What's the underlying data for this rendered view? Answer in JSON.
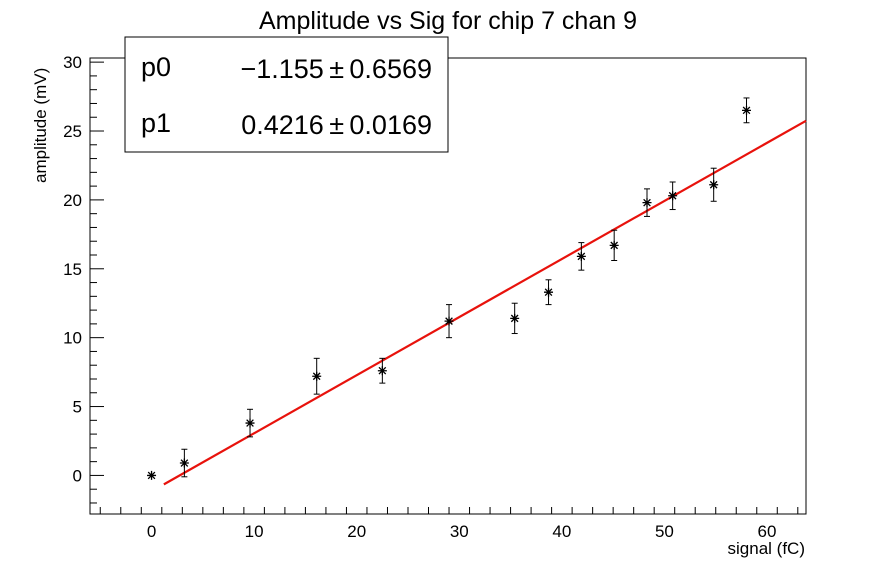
{
  "chart_data": {
    "type": "scatter",
    "title": "Amplitude vs Sig for chip 7 chan 9",
    "xlabel": "signal (fC)",
    "ylabel": "amplitude (mV)",
    "xlim": [
      -6,
      63.8
    ],
    "ylim": [
      -2.8,
      30.3
    ],
    "x_ticks": [
      0,
      10,
      20,
      30,
      40,
      50,
      60
    ],
    "y_ticks": [
      0,
      5,
      10,
      15,
      20,
      25,
      30
    ],
    "grid": false,
    "legend": "none",
    "points": {
      "x": [
        0,
        3.2,
        9.6,
        16.1,
        22.5,
        29.0,
        35.4,
        38.7,
        41.9,
        45.1,
        48.3,
        50.8,
        54.8,
        58.0
      ],
      "y": [
        0,
        0.9,
        3.8,
        7.2,
        7.6,
        11.2,
        11.4,
        13.3,
        15.9,
        16.7,
        19.8,
        20.3,
        21.1,
        26.5
      ],
      "yerr": [
        0,
        1.0,
        1.0,
        1.3,
        0.9,
        1.2,
        1.1,
        0.9,
        1.0,
        1.1,
        1.0,
        1.0,
        1.2,
        0.9
      ],
      "color": "#000000"
    },
    "fit": {
      "type": "linear",
      "x_range": [
        1.2,
        63.8
      ],
      "p0": -1.155,
      "p1": 0.4216,
      "color": "#e8120c"
    },
    "stats_box": {
      "rows": [
        {
          "name": "p0",
          "value": "−1.155 ± 0.6569"
        },
        {
          "name": "p1",
          "value": "0.4216 ± 0.0169"
        }
      ]
    }
  }
}
